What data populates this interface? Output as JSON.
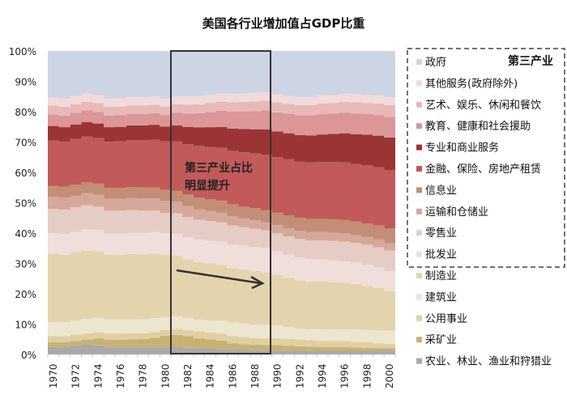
{
  "chart_data": {
    "type": "area",
    "stacked": true,
    "title": "美国各行业增加值占GDP比重",
    "xlabel": "",
    "ylabel": "",
    "ylim": [
      0,
      100
    ],
    "y_ticks": [
      "0%",
      "10%",
      "20%",
      "30%",
      "40%",
      "50%",
      "60%",
      "70%",
      "80%",
      "90%",
      "100%"
    ],
    "x": [
      1970,
      1971,
      1972,
      1973,
      1974,
      1975,
      1976,
      1977,
      1978,
      1979,
      1980,
      1981,
      1982,
      1983,
      1984,
      1985,
      1986,
      1987,
      1988,
      1989,
      1990,
      1991,
      1992,
      1993,
      1994,
      1995,
      1996,
      1997,
      1998,
      1999,
      2000
    ],
    "x_tick_labels": [
      "1970",
      "1972",
      "1974",
      "1976",
      "1978",
      "1980",
      "1982",
      "1984",
      "1986",
      "1988",
      "1990",
      "1992",
      "1994",
      "1996",
      "1998",
      "2000"
    ],
    "legend_position": "right",
    "legend_group_label": "第三产业",
    "series": [
      {
        "name": "农业、林业、渔业和狩猎业",
        "color": "#a9a9a9",
        "values": [
          2.5,
          2.5,
          3.0,
          3.2,
          3.0,
          2.5,
          2.5,
          2.5,
          2.5,
          2.5,
          2.5,
          2.4,
          2.2,
          2.1,
          2.0,
          1.8,
          1.7,
          1.6,
          1.4,
          1.3,
          1.3,
          1.3,
          1.3,
          1.3,
          1.2,
          1.2,
          1.2,
          1.2,
          1.2,
          1.2,
          1.2
        ]
      },
      {
        "name": "采矿业",
        "color": "#c9b173",
        "values": [
          1.5,
          1.5,
          1.5,
          1.7,
          2.3,
          2.4,
          2.4,
          2.5,
          2.6,
          3.0,
          3.7,
          4.0,
          3.8,
          3.3,
          3.0,
          2.8,
          2.0,
          1.8,
          1.8,
          1.8,
          1.8,
          1.6,
          1.4,
          1.3,
          1.2,
          1.2,
          1.2,
          1.1,
          1.0,
          0.9,
          0.9
        ]
      },
      {
        "name": "公用事业",
        "color": "#ded0a0",
        "values": [
          2.0,
          2.0,
          2.0,
          2.0,
          2.0,
          2.0,
          2.0,
          2.0,
          1.9,
          1.9,
          1.8,
          2.0,
          2.1,
          2.2,
          2.2,
          2.3,
          2.3,
          2.3,
          2.2,
          2.2,
          2.2,
          2.2,
          2.2,
          2.1,
          2.1,
          2.0,
          2.0,
          1.9,
          1.8,
          1.6,
          1.4
        ]
      },
      {
        "name": "建筑业",
        "color": "#ede5cf",
        "values": [
          4.7,
          4.7,
          4.8,
          4.8,
          4.8,
          4.6,
          4.5,
          4.5,
          4.6,
          4.6,
          4.4,
          4.2,
          4.0,
          3.9,
          4.1,
          4.3,
          4.5,
          4.5,
          4.5,
          4.5,
          4.3,
          3.9,
          3.7,
          3.7,
          3.8,
          3.8,
          3.9,
          4.0,
          4.1,
          4.3,
          4.4
        ]
      },
      {
        "name": "制造业",
        "color": "#e4d4ad",
        "values": [
          22.6,
          22.2,
          22.3,
          22.5,
          21.8,
          21.3,
          21.5,
          21.6,
          21.4,
          21.2,
          20.4,
          20.0,
          19.3,
          18.9,
          18.7,
          18.3,
          18.0,
          17.8,
          17.6,
          17.3,
          16.6,
          16.2,
          15.8,
          15.6,
          15.7,
          15.6,
          15.3,
          15.0,
          14.5,
          13.9,
          12.9
        ]
      },
      {
        "name": "批发业",
        "color": "#efdeda",
        "values": [
          6.7,
          6.8,
          6.8,
          7.0,
          7.1,
          7.0,
          6.9,
          7.0,
          7.1,
          7.2,
          7.2,
          7.3,
          7.3,
          7.4,
          7.5,
          7.6,
          7.7,
          7.8,
          7.9,
          8.0,
          7.8,
          7.7,
          7.6,
          7.4,
          7.3,
          7.2,
          7.1,
          7.0,
          6.9,
          6.8,
          6.7
        ]
      },
      {
        "name": "零售业",
        "color": "#e5cdc6",
        "values": [
          8.0,
          8.0,
          8.1,
          8.0,
          7.7,
          7.6,
          7.6,
          7.5,
          7.3,
          7.0,
          6.6,
          6.6,
          6.6,
          6.6,
          6.5,
          6.4,
          6.3,
          6.1,
          6.0,
          5.8,
          5.9,
          6.0,
          6.1,
          6.2,
          6.3,
          6.4,
          6.5,
          6.5,
          6.6,
          6.6,
          6.7
        ]
      },
      {
        "name": "运输和仓储业",
        "color": "#d6a89a",
        "values": [
          4.0,
          4.0,
          3.9,
          4.0,
          4.0,
          3.9,
          3.9,
          4.0,
          4.0,
          4.0,
          4.0,
          3.8,
          3.6,
          3.4,
          3.3,
          3.2,
          3.0,
          2.9,
          2.8,
          2.7,
          2.7,
          2.7,
          2.7,
          2.7,
          2.7,
          2.7,
          2.7,
          2.6,
          2.6,
          2.6,
          2.6
        ]
      },
      {
        "name": "信息业",
        "color": "#c38d78",
        "values": [
          3.6,
          3.6,
          3.6,
          3.6,
          3.6,
          3.6,
          3.6,
          3.6,
          3.6,
          3.6,
          3.6,
          3.7,
          3.8,
          3.9,
          3.9,
          4.0,
          4.0,
          4.0,
          4.0,
          4.0,
          4.1,
          4.2,
          4.2,
          4.3,
          4.3,
          4.4,
          4.4,
          4.5,
          4.5,
          4.6,
          4.7
        ]
      },
      {
        "name": "金融、保险、房地产租赁",
        "color": "#c15a58",
        "values": [
          14.9,
          14.8,
          15.0,
          15.0,
          15.0,
          15.2,
          15.3,
          15.4,
          15.6,
          15.8,
          16.0,
          16.2,
          16.6,
          17.0,
          17.2,
          17.4,
          17.6,
          17.8,
          18.0,
          18.2,
          18.3,
          18.5,
          18.6,
          18.7,
          18.8,
          18.9,
          19.0,
          19.0,
          19.1,
          19.2,
          19.3
        ]
      },
      {
        "name": "专业和商业服务",
        "color": "#9b3535",
        "values": [
          4.8,
          4.8,
          4.8,
          4.8,
          4.8,
          4.8,
          4.8,
          4.9,
          4.9,
          4.9,
          4.9,
          5.3,
          5.7,
          6.1,
          6.5,
          6.9,
          7.3,
          7.7,
          8.0,
          8.4,
          8.5,
          8.6,
          8.7,
          8.9,
          9.1,
          9.3,
          9.6,
          9.8,
          10.1,
          10.4,
          10.7
        ]
      },
      {
        "name": "教育、健康和社会援助",
        "color": "#db9697",
        "values": [
          3.8,
          3.8,
          3.8,
          3.8,
          3.8,
          3.8,
          3.8,
          3.8,
          3.8,
          3.8,
          3.8,
          4.1,
          4.4,
          4.7,
          5.0,
          5.3,
          5.6,
          5.8,
          6.0,
          6.2,
          6.3,
          6.4,
          6.5,
          6.6,
          6.7,
          6.7,
          6.8,
          6.8,
          6.8,
          6.8,
          6.8
        ]
      },
      {
        "name": "艺术、娱乐、休闲和餐饮",
        "color": "#e8b9b9",
        "values": [
          2.9,
          2.9,
          2.9,
          2.9,
          2.9,
          2.9,
          2.9,
          2.8,
          2.8,
          2.8,
          2.8,
          2.8,
          2.9,
          2.9,
          3.0,
          3.0,
          3.1,
          3.1,
          3.2,
          3.2,
          3.3,
          3.3,
          3.4,
          3.4,
          3.5,
          3.5,
          3.6,
          3.7,
          3.7,
          3.8,
          3.9
        ]
      },
      {
        "name": "其他服务(政府除外)",
        "color": "#f2dada",
        "values": [
          2.7,
          2.7,
          2.7,
          2.7,
          2.7,
          2.7,
          2.7,
          2.7,
          2.7,
          2.7,
          2.7,
          2.7,
          2.7,
          2.7,
          2.7,
          2.7,
          2.7,
          2.7,
          2.7,
          2.7,
          2.6,
          2.6,
          2.6,
          2.6,
          2.6,
          2.6,
          2.6,
          2.6,
          2.6,
          2.6,
          2.6
        ]
      },
      {
        "name": "政府",
        "color": "#cdd5e4",
        "values": [
          15.3,
          15.8,
          15.6,
          15.2,
          15.3,
          15.8,
          15.6,
          15.3,
          15.0,
          14.9,
          16.0,
          15.7,
          15.4,
          15.2,
          14.8,
          14.5,
          14.3,
          14.0,
          13.9,
          13.8,
          13.9,
          14.0,
          14.0,
          13.9,
          13.8,
          13.6,
          13.5,
          13.4,
          13.3,
          13.2,
          13.0
        ]
      }
    ],
    "annotations": [
      {
        "text_line1": "第三产业占比",
        "text_line2": "明显提升",
        "highlight_range": [
          1981,
          1989
        ],
        "arrow": "downward trend of 制造业"
      }
    ]
  }
}
